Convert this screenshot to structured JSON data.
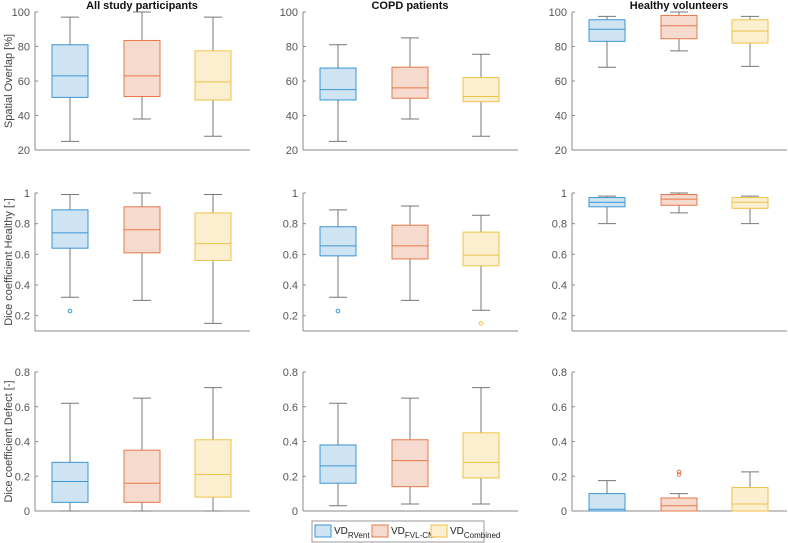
{
  "chart_data": {
    "type": "box",
    "legend": {
      "placement": "bottom-center",
      "entries": [
        {
          "main": "VD",
          "sub": "RVent"
        },
        {
          "main": "VD",
          "sub": "FVL-CM"
        },
        {
          "main": "VD",
          "sub": "Combined"
        }
      ]
    },
    "colors": {
      "stroke": [
        "#3a94d5",
        "#e8784a",
        "#f0c24a"
      ],
      "fill": [
        "#cfe4f3",
        "#f6dacd",
        "#fbefcf"
      ],
      "whisker": "#777777",
      "axis": "#888888"
    },
    "columns": [
      "All study participants",
      "COPD patients",
      "Healthy volunteers"
    ],
    "rows": [
      {
        "ylabel": "Spatial Overlap [%]",
        "ylim": [
          20,
          100
        ],
        "ticks": [
          "20",
          "40",
          "60",
          "80",
          "100"
        ],
        "tick_values": [
          20,
          40,
          60,
          80,
          100
        ],
        "panels": [
          [
            {
              "min": 25,
              "q1": 50.5,
              "median": 63,
              "q3": 81,
              "max": 97,
              "outliers": []
            },
            {
              "min": 38,
              "q1": 51,
              "median": 63,
              "q3": 83.5,
              "max": 100,
              "outliers": []
            },
            {
              "min": 28,
              "q1": 49,
              "median": 59.5,
              "q3": 77.5,
              "max": 97,
              "outliers": []
            }
          ],
          [
            {
              "min": 25,
              "q1": 49,
              "median": 55,
              "q3": 67.5,
              "max": 81,
              "outliers": []
            },
            {
              "min": 38,
              "q1": 50,
              "median": 56,
              "q3": 68,
              "max": 85,
              "outliers": []
            },
            {
              "min": 28,
              "q1": 48,
              "median": 51,
              "q3": 62,
              "max": 75.5,
              "outliers": []
            }
          ],
          [
            {
              "min": 68,
              "q1": 83,
              "median": 90,
              "q3": 95.5,
              "max": 97.5,
              "outliers": []
            },
            {
              "min": 77.5,
              "q1": 84.5,
              "median": 92,
              "q3": 98,
              "max": 100,
              "outliers": []
            },
            {
              "min": 68.5,
              "q1": 82,
              "median": 89,
              "q3": 95.5,
              "max": 97.5,
              "outliers": []
            }
          ]
        ]
      },
      {
        "ylabel": "Dice coefficient Healthy [-]",
        "ylim": [
          0.1,
          1
        ],
        "ticks": [
          "0.2",
          "0.4",
          "0.6",
          "0.8",
          "1"
        ],
        "tick_values": [
          0.2,
          0.4,
          0.6,
          0.8,
          1
        ],
        "panels": [
          [
            {
              "min": 0.32,
              "q1": 0.64,
              "median": 0.74,
              "q3": 0.89,
              "max": 0.99,
              "outliers": [
                0.23
              ]
            },
            {
              "min": 0.3,
              "q1": 0.61,
              "median": 0.76,
              "q3": 0.91,
              "max": 1.0,
              "outliers": []
            },
            {
              "min": 0.15,
              "q1": 0.56,
              "median": 0.67,
              "q3": 0.87,
              "max": 0.99,
              "outliers": []
            }
          ],
          [
            {
              "min": 0.32,
              "q1": 0.59,
              "median": 0.655,
              "q3": 0.78,
              "max": 0.89,
              "outliers": [
                0.23
              ]
            },
            {
              "min": 0.3,
              "q1": 0.57,
              "median": 0.655,
              "q3": 0.79,
              "max": 0.915,
              "outliers": []
            },
            {
              "min": 0.235,
              "q1": 0.525,
              "median": 0.595,
              "q3": 0.745,
              "max": 0.855,
              "outliers": [
                0.15
              ]
            }
          ],
          [
            {
              "min": 0.8,
              "q1": 0.91,
              "median": 0.94,
              "q3": 0.97,
              "max": 0.98,
              "outliers": []
            },
            {
              "min": 0.87,
              "q1": 0.92,
              "median": 0.96,
              "q3": 0.99,
              "max": 1.0,
              "outliers": []
            },
            {
              "min": 0.8,
              "q1": 0.9,
              "median": 0.94,
              "q3": 0.97,
              "max": 0.98,
              "outliers": []
            }
          ]
        ]
      },
      {
        "ylabel": "Dice coefficient Defect [-]",
        "ylim": [
          0,
          0.8
        ],
        "ticks": [
          "0",
          "0.2",
          "0.4",
          "0.6",
          "0.8"
        ],
        "tick_values": [
          0,
          0.2,
          0.4,
          0.6,
          0.8
        ],
        "panels": [
          [
            {
              "min": 0,
              "q1": 0.05,
              "median": 0.17,
              "q3": 0.28,
              "max": 0.62,
              "outliers": []
            },
            {
              "min": 0,
              "q1": 0.05,
              "median": 0.16,
              "q3": 0.35,
              "max": 0.65,
              "outliers": []
            },
            {
              "min": 0,
              "q1": 0.08,
              "median": 0.21,
              "q3": 0.41,
              "max": 0.71,
              "outliers": []
            }
          ],
          [
            {
              "min": 0.03,
              "q1": 0.16,
              "median": 0.26,
              "q3": 0.38,
              "max": 0.62,
              "outliers": []
            },
            {
              "min": 0.04,
              "q1": 0.14,
              "median": 0.29,
              "q3": 0.41,
              "max": 0.65,
              "outliers": []
            },
            {
              "min": 0.04,
              "q1": 0.19,
              "median": 0.28,
              "q3": 0.45,
              "max": 0.71,
              "outliers": []
            }
          ],
          [
            {
              "min": 0,
              "q1": 0,
              "median": 0.01,
              "q3": 0.1,
              "max": 0.175,
              "outliers": []
            },
            {
              "min": 0,
              "q1": 0,
              "median": 0.03,
              "q3": 0.075,
              "max": 0.1,
              "outliers": [
                0.21,
                0.225
              ]
            },
            {
              "min": 0,
              "q1": 0,
              "median": 0.04,
              "q3": 0.135,
              "max": 0.225,
              "outliers": []
            }
          ]
        ]
      }
    ]
  }
}
